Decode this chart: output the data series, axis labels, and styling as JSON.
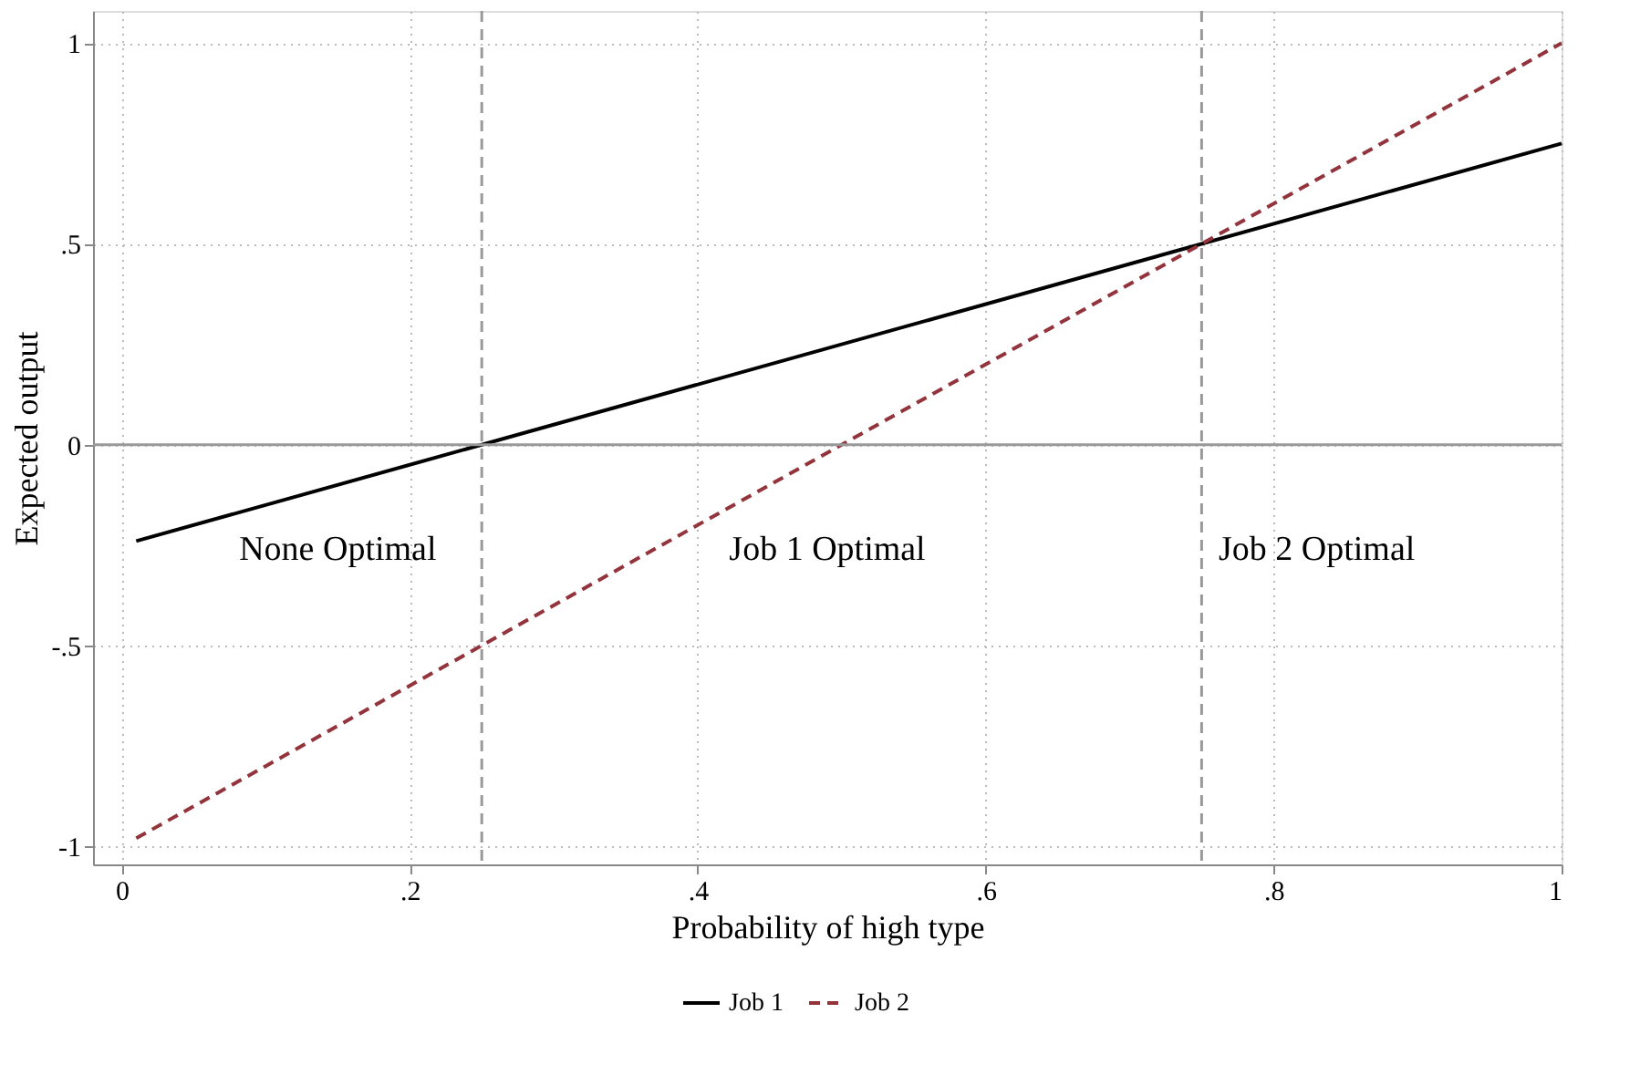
{
  "chart_data": {
    "type": "line",
    "xlabel": "Probability of high type",
    "ylabel": "Expected output",
    "xlim": [
      -0.02,
      1
    ],
    "xticks": [
      0,
      {
        "value": 0.2,
        "label": ".2"
      },
      {
        "value": 0.4,
        "label": ".4"
      },
      {
        "value": 0.6,
        "label": ".6"
      },
      {
        "value": 0.8,
        "label": ".8"
      },
      1
    ],
    "ylim": [
      -1.045,
      1.08
    ],
    "yticks": [
      -1,
      {
        "value": -0.5,
        "label": "-.5"
      },
      0,
      {
        "value": 0.5,
        "label": ".5"
      },
      1
    ],
    "x": [
      0.01,
      1
    ],
    "series": [
      {
        "name": "Job 1",
        "color": "#000000",
        "values": [
          -0.24,
          0.75
        ],
        "line_style": "solid"
      },
      {
        "name": "Job 2",
        "color": "#93343c",
        "values": [
          -0.98,
          1.0
        ],
        "line_style": "dashed"
      }
    ],
    "ref_lines": [
      {
        "axis": "y",
        "value": 0,
        "color": "#999999",
        "line_style": "solid"
      },
      {
        "axis": "x",
        "value": 0.25,
        "color": "#999999",
        "line_style": "dashed"
      },
      {
        "axis": "x",
        "value": 0.75,
        "color": "#999999",
        "line_style": "dashed"
      }
    ],
    "annotations": [
      "None Optimal",
      "Job 1 Optimal",
      "Job 2 Optimal"
    ],
    "grid": true,
    "legend": "bottom",
    "marker": "none"
  }
}
